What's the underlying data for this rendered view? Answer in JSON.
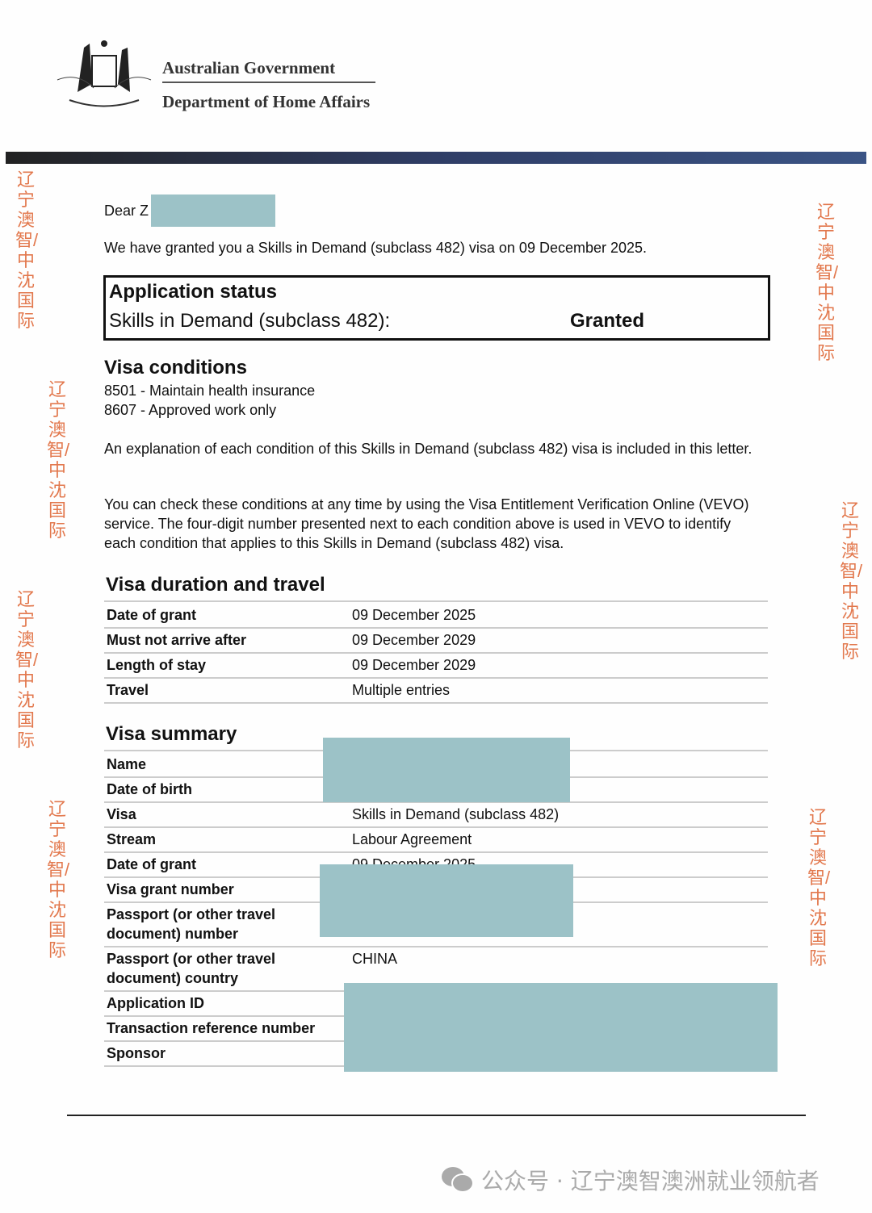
{
  "header": {
    "org": "Australian Government",
    "dept": "Department of Home Affairs",
    "crest_label": "AUSTRALIA"
  },
  "letter": {
    "greeting": "Dear Z",
    "intro": "We have granted you a Skills in Demand (subclass 482) visa on 09 December 2025.",
    "status": {
      "title": "Application status",
      "label": "Skills in Demand (subclass 482):",
      "value": "Granted"
    },
    "conditions": {
      "title": "Visa conditions",
      "items": [
        "8501 - Maintain health insurance",
        "8607 - Approved work only"
      ]
    },
    "para1": "An explanation of each condition of this Skills in Demand (subclass 482) visa is included in this letter.",
    "para2": "You can check these conditions at any time by using the Visa Entitlement Verification Online (VEVO) service. The four-digit number presented next to each condition above is used in VEVO to identify each condition that applies to this Skills in Demand (subclass 482) visa."
  },
  "duration": {
    "title": "Visa duration and travel",
    "rows": [
      {
        "label": "Date of grant",
        "value": "09 December 2025"
      },
      {
        "label": "Must not arrive after",
        "value": "09 December 2029"
      },
      {
        "label": "Length of stay",
        "value": "09 December 2029"
      },
      {
        "label": "Travel",
        "value": "Multiple entries"
      }
    ]
  },
  "summary": {
    "title": "Visa summary",
    "rows": [
      {
        "label": "Name",
        "value": ""
      },
      {
        "label": "Date of birth",
        "value": ""
      },
      {
        "label": "Visa",
        "value": "Skills in Demand (subclass 482)"
      },
      {
        "label": "Stream",
        "value": "Labour Agreement"
      },
      {
        "label": "Date of grant",
        "value": "09 December 2025"
      },
      {
        "label": "Visa grant number",
        "value": ""
      },
      {
        "label": "Passport (or other travel document) number",
        "value": ""
      },
      {
        "label": "Passport (or other travel document) country",
        "value": "CHINA"
      },
      {
        "label": "Application ID",
        "value": ""
      },
      {
        "label": "Transaction reference number",
        "value": ""
      },
      {
        "label": "Sponsor",
        "value": ""
      }
    ]
  },
  "watermark": "辽宁澳智/中沈国际",
  "footer": {
    "text": "公众号 · 辽宁澳智澳洲就业领航者",
    "icon": "wechat-icon"
  },
  "colors": {
    "redaction": "#9cc2c7",
    "watermark": "#e06a3a",
    "banner": "#2a3a5e"
  }
}
